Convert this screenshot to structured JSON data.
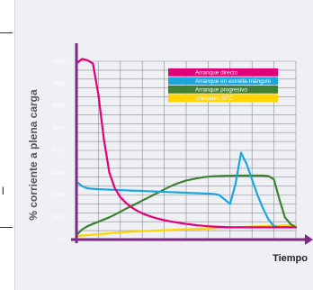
{
  "edge_text": "l",
  "chart_data": {
    "type": "line",
    "title": "",
    "xlabel": "Tiempo",
    "ylabel": "% corriente a plena carga",
    "ylim": [
      0,
      800
    ],
    "yticks": [
      "0 %",
      "100%",
      "200%",
      "300%",
      "400%",
      "500%",
      "600%",
      "700%",
      "800%"
    ],
    "grid": true,
    "legend_position": "top-right",
    "x": [
      0,
      1,
      2,
      3,
      4,
      5,
      6,
      7,
      8,
      9,
      10,
      11,
      12,
      13,
      14,
      15,
      16,
      17,
      18,
      19,
      20,
      21,
      22,
      23,
      24,
      25,
      26,
      27,
      28,
      29,
      30,
      31,
      32,
      33,
      34,
      35,
      36,
      37,
      38,
      39,
      40
    ],
    "series": [
      {
        "name": "Arranque directo",
        "color": "#e2007a",
        "values": [
          790,
          810,
          805,
          790,
          650,
          450,
          300,
          230,
          190,
          165,
          145,
          130,
          118,
          108,
          100,
          93,
          87,
          82,
          78,
          74,
          70,
          67,
          64,
          62,
          60,
          58,
          57,
          56,
          55,
          55,
          55,
          55,
          55,
          55,
          55,
          55,
          55,
          55,
          55,
          55,
          55
        ]
      },
      {
        "name": "Arranque en estrella-triángulo",
        "color": "#1aa7e0",
        "values": [
          260,
          240,
          230,
          228,
          226,
          225,
          224,
          223,
          222,
          221,
          220,
          219,
          218,
          217,
          216,
          215,
          214,
          213,
          212,
          211,
          210,
          209,
          208,
          207,
          206,
          205,
          200,
          180,
          160,
          250,
          390,
          340,
          270,
          200,
          140,
          90,
          60,
          55,
          55,
          55,
          55
        ]
      },
      {
        "name": "Arranque progresivo",
        "color": "#3f8035",
        "values": [
          20,
          45,
          60,
          70,
          80,
          90,
          100,
          112,
          125,
          138,
          150,
          162,
          175,
          187,
          200,
          212,
          225,
          237,
          248,
          257,
          265,
          270,
          275,
          279,
          282,
          284,
          285,
          286,
          286,
          287,
          287,
          287,
          287,
          287,
          287,
          285,
          270,
          180,
          100,
          70,
          55
        ]
      },
      {
        "name": "Unidades SFC",
        "color": "#ffd400",
        "values": [
          15,
          18,
          20,
          22,
          24,
          26,
          28,
          30,
          32,
          34,
          35,
          36,
          37,
          38,
          40,
          41,
          42,
          43,
          44,
          45,
          46,
          47,
          48,
          49,
          50,
          51,
          52,
          53,
          54,
          55,
          56,
          57,
          58,
          59,
          60,
          61,
          62,
          62,
          63,
          63,
          63
        ]
      }
    ]
  }
}
